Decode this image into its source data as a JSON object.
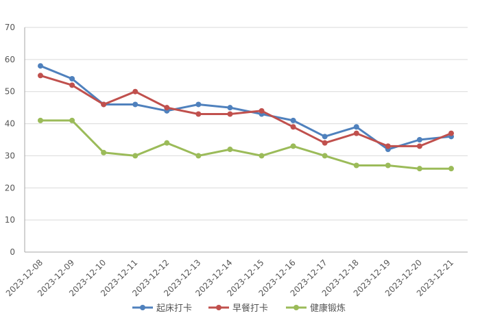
{
  "chart_data": {
    "type": "line",
    "title": "",
    "xlabel": "",
    "ylabel": "",
    "ylim": [
      0,
      70
    ],
    "yticks": [
      0,
      10,
      20,
      30,
      40,
      50,
      60,
      70
    ],
    "grid": true,
    "legend_position": "bottom",
    "categories": [
      "2023-12-08",
      "2023-12-09",
      "2023-12-10",
      "2023-12-11",
      "2023-12-12",
      "2023-12-13",
      "2023-12-14",
      "2023-12-15",
      "2023-12-16",
      "2023-12-17",
      "2023-12-18",
      "2023-12-19",
      "2023-12-20",
      "2023-12-21"
    ],
    "series": [
      {
        "name": "起床打卡",
        "color": "#4F81BD",
        "values": [
          58,
          54,
          46,
          46,
          44,
          46,
          45,
          43,
          41,
          36,
          39,
          32,
          35,
          36
        ]
      },
      {
        "name": "早餐打卡",
        "color": "#C0504D",
        "values": [
          55,
          52,
          46,
          50,
          45,
          43,
          43,
          44,
          39,
          34,
          37,
          33,
          33,
          37
        ]
      },
      {
        "name": "健康锻炼",
        "color": "#9BBB59",
        "values": [
          41,
          41,
          31,
          30,
          34,
          30,
          32,
          30,
          33,
          30,
          27,
          27,
          26,
          26
        ]
      }
    ]
  }
}
